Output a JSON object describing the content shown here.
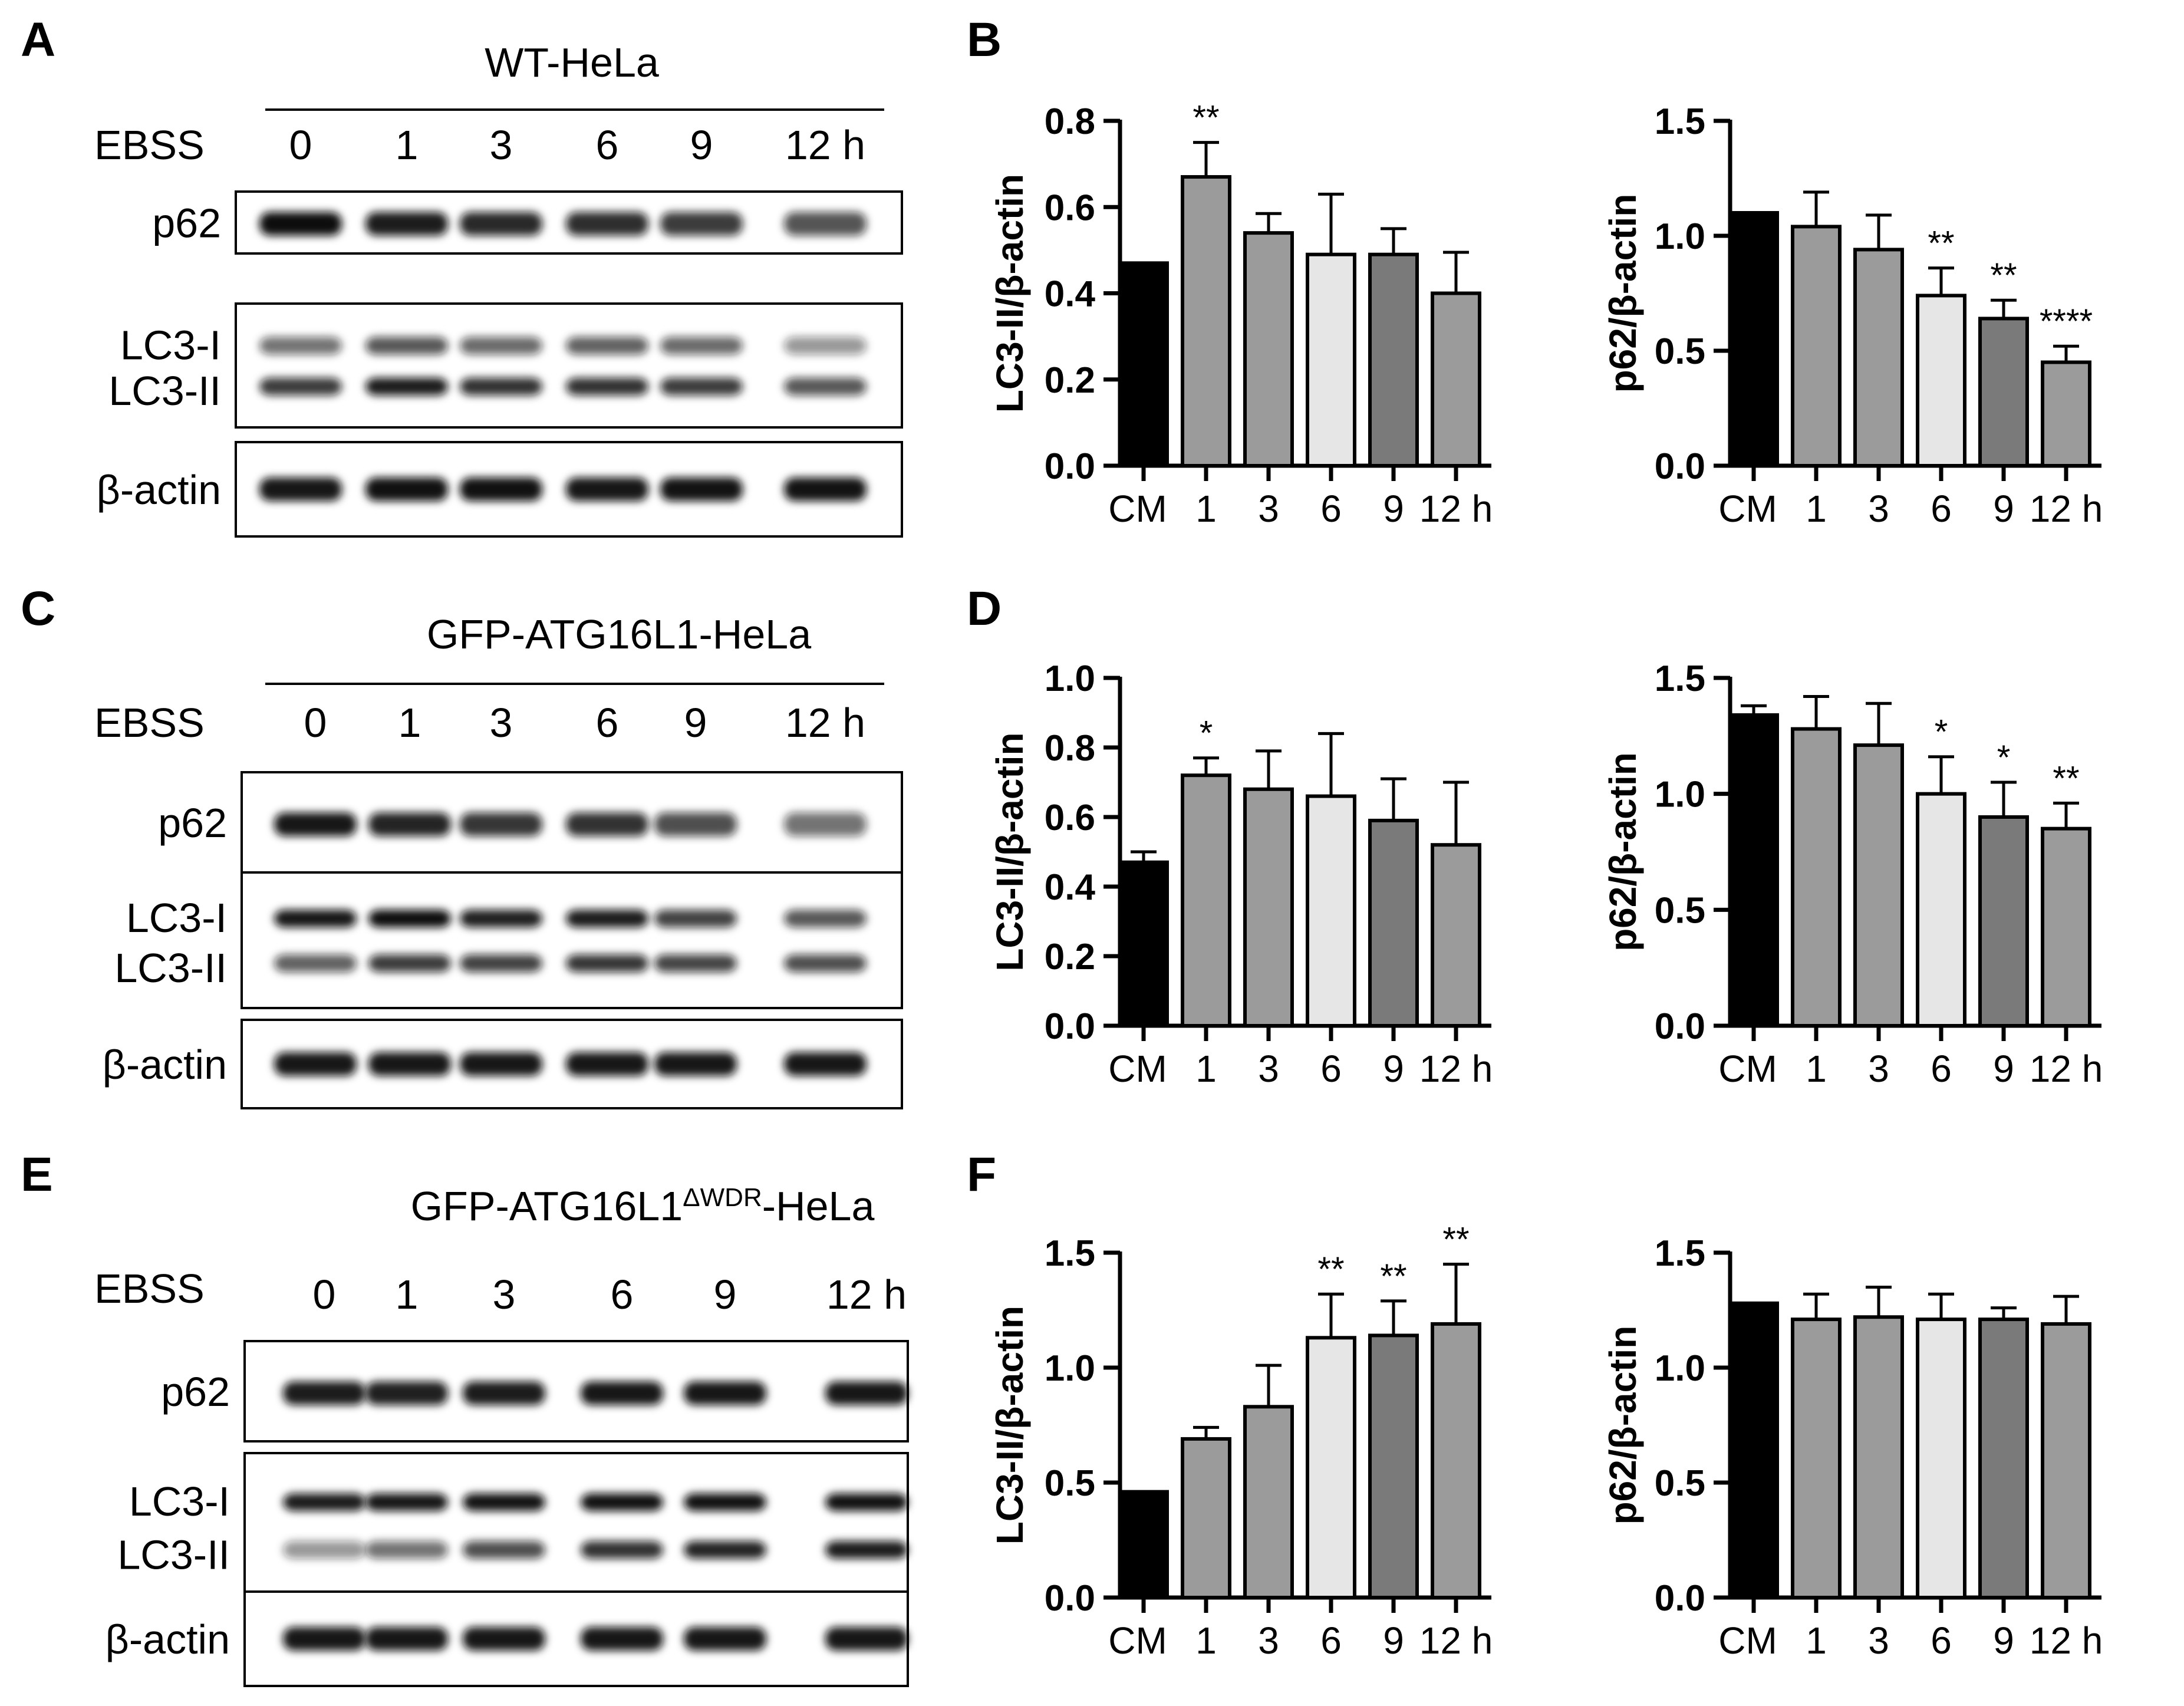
{
  "figure": {
    "blots": [
      {
        "letter": "A",
        "title": "WT-HeLa",
        "treatment_label": "EBSS",
        "lanes": [
          "0",
          "1",
          "3",
          "6",
          "9",
          "12 h"
        ],
        "labels": {
          "p62": "p62",
          "lc3_upper": "LC3-I",
          "lc3_lower": "LC3-II",
          "actin": "β-actin"
        },
        "intensity": {
          "p62": [
            1.0,
            0.92,
            0.85,
            0.82,
            0.75,
            0.62
          ],
          "lc3_upper": [
            0.45,
            0.6,
            0.5,
            0.55,
            0.5,
            0.25
          ],
          "lc3_lower": [
            0.75,
            0.92,
            0.8,
            0.8,
            0.75,
            0.6
          ],
          "actin": [
            0.95,
            0.98,
            0.98,
            0.95,
            0.97,
            0.97
          ]
        }
      },
      {
        "letter": "C",
        "title": "GFP-ATG16L1-HeLa",
        "treatment_label": "EBSS",
        "lanes": [
          "0",
          "1",
          "3",
          "6",
          "9",
          "12 h"
        ],
        "labels": {
          "p62": "p62",
          "lc3_upper": "LC3-I",
          "lc3_lower": "LC3-II",
          "actin": "β-actin"
        },
        "intensity": {
          "p62": [
            0.95,
            0.88,
            0.78,
            0.8,
            0.65,
            0.45
          ],
          "lc3_upper": [
            0.95,
            1.0,
            0.9,
            0.92,
            0.72,
            0.6
          ],
          "lc3_lower": [
            0.55,
            0.75,
            0.72,
            0.78,
            0.7,
            0.65
          ],
          "actin": [
            0.95,
            0.95,
            0.95,
            0.95,
            0.95,
            0.95
          ]
        }
      },
      {
        "letter": "E",
        "title": "GFP-ATG16L1",
        "title_sup": "ΔWDR",
        "title_suffix": "-HeLa",
        "treatment_label": "EBSS",
        "lanes": [
          "0",
          "1",
          "3",
          "6",
          "9",
          "12 h"
        ],
        "labels": {
          "p62": "p62",
          "lc3_upper": "LC3-I",
          "lc3_lower": "LC3-II",
          "actin": "β-actin"
        },
        "intensity": {
          "p62": [
            0.92,
            0.9,
            0.92,
            0.95,
            0.95,
            0.95
          ],
          "lc3_upper": [
            0.92,
            0.95,
            0.97,
            0.98,
            0.98,
            0.98
          ],
          "lc3_lower": [
            0.25,
            0.45,
            0.65,
            0.8,
            0.88,
            0.92
          ],
          "actin": [
            0.95,
            0.95,
            0.95,
            0.95,
            0.95,
            0.95
          ]
        }
      }
    ]
  },
  "chart_data": [
    {
      "panel": "B",
      "type": "bar",
      "categories": [
        "CM",
        "1",
        "3",
        "6",
        "9",
        "12 h"
      ],
      "values": [
        0.47,
        0.67,
        0.54,
        0.49,
        0.49,
        0.4
      ],
      "errors": [
        0.0,
        0.08,
        0.045,
        0.14,
        0.06,
        0.095
      ],
      "significance": [
        "",
        "**",
        "",
        "",
        "",
        ""
      ],
      "ylabel": "LC3-II/β-actin",
      "ylim": [
        0,
        0.8
      ],
      "yticks": [
        "0.0",
        "0.2",
        "0.4",
        "0.6",
        "0.8"
      ],
      "bar_colors": [
        "#000000",
        "#9b9b9b",
        "#9b9b9b",
        "#e6e6e6",
        "#7a7a7a",
        "#9b9b9b"
      ]
    },
    {
      "panel": "",
      "type": "bar",
      "categories": [
        "CM",
        "1",
        "3",
        "6",
        "9",
        "12 h"
      ],
      "values": [
        1.1,
        1.04,
        0.94,
        0.74,
        0.64,
        0.45
      ],
      "errors": [
        0.0,
        0.15,
        0.15,
        0.12,
        0.08,
        0.07
      ],
      "significance": [
        "",
        "",
        "",
        "**",
        "**",
        "****"
      ],
      "ylabel": "p62/β-actin",
      "ylim": [
        0,
        1.5
      ],
      "yticks": [
        "0.0",
        "0.5",
        "1.0",
        "1.5"
      ],
      "bar_colors": [
        "#000000",
        "#9b9b9b",
        "#9b9b9b",
        "#e6e6e6",
        "#7a7a7a",
        "#9b9b9b"
      ]
    },
    {
      "panel": "D",
      "type": "bar",
      "categories": [
        "CM",
        "1",
        "3",
        "6",
        "9",
        "12 h"
      ],
      "values": [
        0.47,
        0.72,
        0.68,
        0.66,
        0.59,
        0.52
      ],
      "errors": [
        0.03,
        0.05,
        0.11,
        0.18,
        0.12,
        0.18
      ],
      "significance": [
        "",
        "*",
        "",
        "",
        "",
        ""
      ],
      "ylabel": "LC3-II/β-actin",
      "ylim": [
        0,
        1.0
      ],
      "yticks": [
        "0.0",
        "0.2",
        "0.4",
        "0.6",
        "0.8",
        "1.0"
      ],
      "bar_colors": [
        "#000000",
        "#9b9b9b",
        "#9b9b9b",
        "#e6e6e6",
        "#7a7a7a",
        "#9b9b9b"
      ]
    },
    {
      "panel": "",
      "type": "bar",
      "categories": [
        "CM",
        "1",
        "3",
        "6",
        "9",
        "12 h"
      ],
      "values": [
        1.34,
        1.28,
        1.21,
        1.0,
        0.9,
        0.85
      ],
      "errors": [
        0.04,
        0.14,
        0.18,
        0.16,
        0.15,
        0.11
      ],
      "significance": [
        "",
        "",
        "",
        "*",
        "*",
        "**"
      ],
      "ylabel": "p62/β-actin",
      "ylim": [
        0,
        1.5
      ],
      "yticks": [
        "0.0",
        "0.5",
        "1.0",
        "1.5"
      ],
      "bar_colors": [
        "#000000",
        "#9b9b9b",
        "#9b9b9b",
        "#e6e6e6",
        "#7a7a7a",
        "#9b9b9b"
      ]
    },
    {
      "panel": "F",
      "type": "bar",
      "categories": [
        "CM",
        "1",
        "3",
        "6",
        "9",
        "12 h"
      ],
      "values": [
        0.46,
        0.69,
        0.83,
        1.13,
        1.14,
        1.19
      ],
      "errors": [
        0.0,
        0.05,
        0.18,
        0.19,
        0.15,
        0.26
      ],
      "significance": [
        "",
        "",
        "",
        "**",
        "**",
        "**"
      ],
      "ylabel": "LC3-II/β-actin",
      "ylim": [
        0,
        1.5
      ],
      "yticks": [
        "0.0",
        "0.5",
        "1.0",
        "1.5"
      ],
      "bar_colors": [
        "#000000",
        "#9b9b9b",
        "#9b9b9b",
        "#e6e6e6",
        "#7a7a7a",
        "#9b9b9b"
      ]
    },
    {
      "panel": "",
      "type": "bar",
      "categories": [
        "CM",
        "1",
        "3",
        "6",
        "9",
        "12 h"
      ],
      "values": [
        1.28,
        1.21,
        1.22,
        1.21,
        1.21,
        1.19
      ],
      "errors": [
        0.0,
        0.11,
        0.13,
        0.11,
        0.05,
        0.12
      ],
      "significance": [
        "",
        "",
        "",
        "",
        "",
        ""
      ],
      "ylabel": "p62/β-actin",
      "ylim": [
        0,
        1.5
      ],
      "yticks": [
        "0.0",
        "0.5",
        "1.0",
        "1.5"
      ],
      "bar_colors": [
        "#000000",
        "#9b9b9b",
        "#9b9b9b",
        "#e6e6e6",
        "#7a7a7a",
        "#9b9b9b"
      ]
    }
  ]
}
